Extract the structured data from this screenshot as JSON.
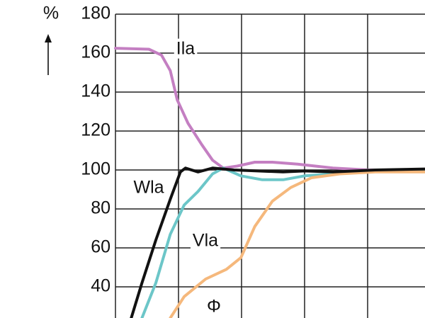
{
  "chart_data": {
    "type": "line",
    "y_label": "%",
    "xlim": [
      0,
      4.91
    ],
    "xticks": [
      0,
      1,
      2,
      3,
      4
    ],
    "ylim": [
      24,
      180
    ],
    "yticks": [
      40,
      60,
      80,
      100,
      120,
      140,
      160,
      180
    ],
    "grid": true,
    "series": [
      {
        "name": "Ila",
        "color": "#c47fc2",
        "x": [
          0,
          0.53,
          0.73,
          0.87,
          0.98,
          1.15,
          1.37,
          1.54,
          1.71,
          1.93,
          2.21,
          2.49,
          2.89,
          3.45,
          4.01,
          4.91
        ],
        "values": [
          162.5,
          162,
          159,
          151,
          136,
          124,
          113,
          105,
          101,
          102,
          104,
          104,
          103,
          101,
          100,
          100
        ]
      },
      {
        "name": "Vla",
        "color": "#6cc6c8",
        "x": [
          0.42,
          0.64,
          0.87,
          1.09,
          1.31,
          1.54,
          1.71,
          1.99,
          2.33,
          2.66,
          3.0,
          3.45,
          4.01,
          4.91
        ],
        "values": [
          24,
          42,
          67,
          82,
          89,
          98,
          101,
          97,
          95,
          95,
          97,
          98,
          99,
          100
        ]
      },
      {
        "name": "Φ",
        "color": "#f5b87c",
        "x": [
          0.87,
          1.09,
          1.43,
          1.76,
          1.99,
          2.21,
          2.49,
          2.78,
          3.11,
          3.56,
          4.12,
          4.91
        ],
        "values": [
          24,
          35,
          44,
          49,
          55,
          71,
          84,
          91,
          96,
          98,
          99,
          99
        ]
      },
      {
        "name": "Wla",
        "color": "#111111",
        "x": [
          0.25,
          0.42,
          0.64,
          0.87,
          1.03,
          1.11,
          1.31,
          1.54,
          1.88,
          2.66,
          3.0,
          3.45,
          4.12,
          4.91
        ],
        "values": [
          24,
          42,
          64,
          85,
          99,
          101,
          99,
          101,
          100,
          99,
          99.5,
          99,
          100,
          100.5
        ]
      }
    ]
  }
}
